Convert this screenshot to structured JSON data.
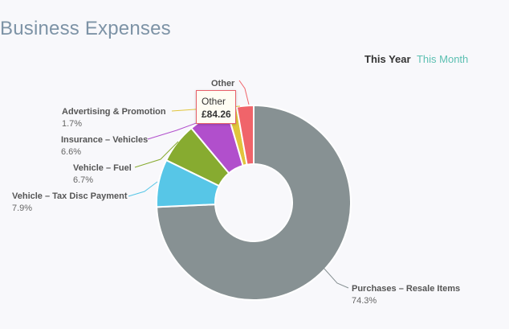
{
  "page": {
    "title": "Business Expenses",
    "period_active": "This Year",
    "period_link": "This Month"
  },
  "tooltip": {
    "label": "Other",
    "value": "£84.26"
  },
  "chart_data": {
    "type": "pie",
    "donut": true,
    "title": "",
    "slices": [
      {
        "label": "Purchases – Resale Items",
        "pct_text": "74.3%",
        "value": 74.3,
        "color": "#879193"
      },
      {
        "label": "Vehicle – Tax Disc Payment",
        "pct_text": "7.9%",
        "value": 7.9,
        "color": "#57c6e7"
      },
      {
        "label": "Vehicle – Fuel",
        "pct_text": "6.7%",
        "value": 6.7,
        "color": "#87ab30"
      },
      {
        "label": "Insurance – Vehicles",
        "pct_text": "6.6%",
        "value": 6.6,
        "color": "#b14fcc"
      },
      {
        "label": "Advertising & Promotion",
        "pct_text": "1.7%",
        "value": 1.7,
        "color": "#e1c53c"
      },
      {
        "label": "Other",
        "pct_text": "",
        "value": 2.8,
        "color": "#f0646a"
      }
    ]
  }
}
